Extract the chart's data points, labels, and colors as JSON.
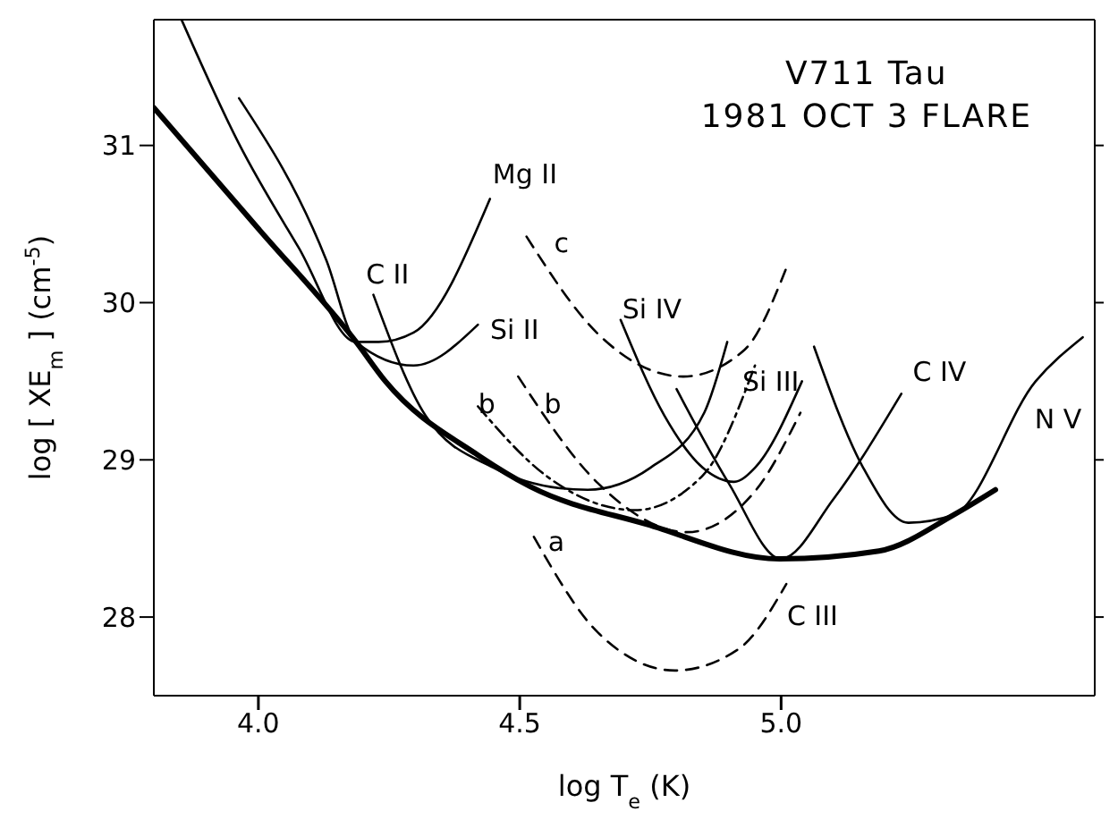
{
  "chart_data": {
    "type": "line",
    "title": "V711 Tau",
    "subtitle": "1981 OCT 3 FLARE",
    "xlabel": "log T$_{e}$ (K)",
    "ylabel": "log [ XE$_{m}$ ] (cm$^{-5}$)",
    "xlim": [
      3.8,
      5.6
    ],
    "xticks": [
      {
        "value": 4,
        "label": "4.0"
      },
      {
        "value": 4.5,
        "label": "4.5"
      },
      {
        "value": 5,
        "label": "5.0"
      }
    ],
    "ylim": [
      27.5,
      31.8
    ],
    "yticks": [
      28,
      29,
      30,
      31
    ],
    "grid": false,
    "marker": "none",
    "series": [
      {
        "color": "#000000",
        "line_style": "solid",
        "x": [
          3.8,
          4.0,
          4.187,
          4.243,
          4.42,
          4.52,
          4.743,
          4.997,
          5.187,
          5.33,
          5.41
        ],
        "values": [
          31.24,
          30.47,
          29.75,
          29.5,
          29.03,
          28.83,
          28.59,
          28.37,
          28.42,
          28.65,
          28.81
        ]
      },
      {
        "color": "#000000",
        "line_style": "solid",
        "x": [
          3.853,
          3.963,
          4.077,
          4.187,
          4.23,
          4.297,
          4.443
        ],
        "values": [
          31.8,
          31.01,
          30.35,
          29.75,
          29.75,
          29.81,
          30.66
        ]
      },
      {
        "color": "#000000",
        "line_style": "solid",
        "x": [
          3.963,
          4.13,
          4.187,
          4.297,
          4.42
        ],
        "values": [
          31.3,
          30.27,
          29.75,
          29.6,
          29.86
        ]
      },
      {
        "color": "#000000",
        "line_style": "solid",
        "x": [
          4.22,
          4.32,
          4.45,
          4.577,
          4.63,
          4.75,
          4.853,
          4.897
        ],
        "values": [
          30.05,
          29.28,
          28.95,
          28.82,
          28.81,
          28.95,
          29.3,
          29.75
        ]
      },
      {
        "color": "#000000",
        "line_style": "solid",
        "x": [
          4.693,
          4.777,
          4.85,
          4.91,
          4.95,
          5.04
        ],
        "values": [
          29.89,
          29.28,
          28.95,
          28.86,
          28.95,
          29.5
        ]
      },
      {
        "color": "#000000",
        "line_style": "solid",
        "x": [
          4.8,
          4.9,
          5.0,
          5.1,
          5.23
        ],
        "values": [
          29.45,
          28.85,
          28.37,
          28.75,
          29.42
        ]
      },
      {
        "color": "#000000",
        "line_style": "solid",
        "x": [
          5.063,
          5.157,
          5.243,
          5.33,
          5.487,
          5.577
        ],
        "values": [
          29.72,
          28.95,
          28.6,
          28.65,
          29.5,
          29.78
        ]
      },
      {
        "color": "#000000",
        "line_style": "dashed",
        "x": [
          4.513,
          4.65,
          4.813,
          4.93,
          5.01
        ],
        "values": [
          30.42,
          29.8,
          29.53,
          29.7,
          30.22
        ]
      },
      {
        "color": "#000000",
        "line_style": "dashdot",
        "x": [
          4.42,
          4.55,
          4.72,
          4.85,
          4.95
        ],
        "values": [
          29.34,
          28.9,
          28.68,
          28.9,
          29.6
        ]
      },
      {
        "color": "#000000",
        "line_style": "dashed",
        "x": [
          4.497,
          4.65,
          4.82,
          4.95,
          5.037
        ],
        "values": [
          29.53,
          28.85,
          28.54,
          28.8,
          29.3
        ]
      },
      {
        "color": "#000000",
        "line_style": "dashed",
        "x": [
          4.527,
          4.65,
          4.797,
          4.92,
          5.01
        ],
        "values": [
          28.51,
          27.9,
          27.66,
          27.8,
          28.21
        ]
      }
    ],
    "annotations": [
      "Mg II",
      "C II",
      "Si II",
      "c",
      "b",
      "b",
      "Si IV",
      "Si III",
      "C IV",
      "N V",
      "a",
      "C III"
    ]
  }
}
